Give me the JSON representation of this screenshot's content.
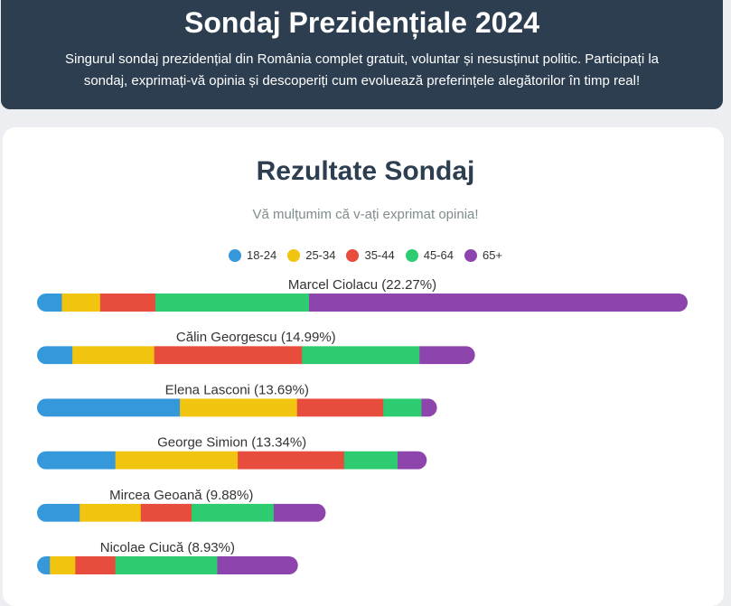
{
  "header": {
    "title": "Sondaj Prezidențiale 2024",
    "subtitle": "Singurul sondaj prezidențial din România complet gratuit, voluntar și nesusținut politic. Participați la sondaj, exprimați-vă opinia și descoperiți cum evoluează preferințele alegătorilor în timp real!"
  },
  "results": {
    "title": "Rezultate Sondaj",
    "thanks": "Vă mulțumim că v-ați exprimat opinia!"
  },
  "colors": {
    "18-24": "#3498db",
    "25-34": "#f1c40f",
    "35-44": "#e74c3c",
    "45-64": "#2ecc71",
    "65+": "#8e44ad"
  },
  "chart_data": {
    "type": "bar",
    "stacked": true,
    "orientation": "horizontal",
    "legend_position": "top-center",
    "categories": [
      "Marcel Ciolacu (22.27%)",
      "Călin Georgescu (14.99%)",
      "Elena Lasconi (13.69%)",
      "George Simion (13.34%)",
      "Mircea Geoană (9.88%)",
      "Nicolae Ciucă (8.93%)"
    ],
    "totals": [
      22.27,
      14.99,
      13.69,
      13.34,
      9.88,
      8.93
    ],
    "series": [
      {
        "name": "18-24",
        "values": [
          0.85,
          1.21,
          4.89,
          2.68,
          1.46,
          0.44
        ]
      },
      {
        "name": "25-34",
        "values": [
          1.31,
          2.8,
          4.01,
          4.19,
          2.09,
          0.87
        ]
      },
      {
        "name": "35-44",
        "values": [
          1.89,
          5.06,
          2.95,
          3.64,
          1.74,
          1.37
        ]
      },
      {
        "name": "45-64",
        "values": [
          5.26,
          4.02,
          1.31,
          1.83,
          2.81,
          3.49
        ]
      },
      {
        "name": "65+",
        "values": [
          12.96,
          1.9,
          0.53,
          1.0,
          1.78,
          2.76
        ]
      }
    ]
  }
}
